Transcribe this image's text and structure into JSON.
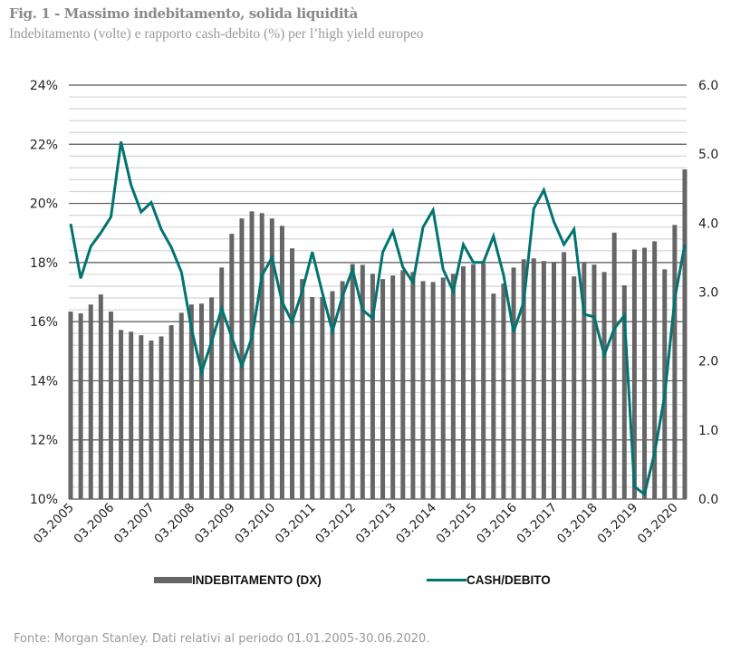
{
  "title": "Fig. 1 - Massimo indebitamento, solida liquidità",
  "subtitle": "Indebitamento (volte) e rapporto cash-debito (%) per l’high yield europeo",
  "footer": "Fonte: Morgan Stanley. Dati relativi al periodo 01.01.2005-30.06.2020.",
  "colors": {
    "bars": "#666666",
    "line": "#007470",
    "grid_major": "#555555",
    "grid_minor": "#d4d4d4"
  },
  "chart_data": {
    "type": "bar+line",
    "title": "Fig. 1 - Massimo indebitamento, solida liquidità",
    "x_tick_labels": [
      "03.2005",
      "03.2006",
      "03.2007",
      "03.2008",
      "03.2009",
      "03.2010",
      "03.2011",
      "03.2012",
      "03.2013",
      "03.2014",
      "03.2015",
      "03.2016",
      "03.2017",
      "03.2018",
      "03.2019",
      "03.2020"
    ],
    "x_tick_every": 4,
    "left_axis": {
      "ylim": [
        10,
        24
      ],
      "ticks": [
        "10%",
        "12%",
        "14%",
        "16%",
        "18%",
        "20%",
        "22%",
        "24%"
      ],
      "tick_values": [
        10,
        12,
        14,
        16,
        18,
        20,
        22,
        24
      ],
      "minor_step": 0.4
    },
    "right_axis": {
      "ylim": [
        0,
        6
      ],
      "ticks": [
        "0.0",
        "1.0",
        "2.0",
        "3.0",
        "4.0",
        "5.0",
        "6.0"
      ],
      "tick_values": [
        0,
        1,
        2,
        3,
        4,
        5,
        6
      ]
    },
    "grid": true,
    "legend_position": "bottom",
    "series": [
      {
        "name": "INDEBITAMENTO (DX)",
        "type": "bar",
        "axis": "left",
        "values": [
          16.34,
          16.28,
          16.58,
          16.92,
          16.34,
          15.72,
          15.66,
          15.54,
          15.36,
          15.5,
          15.88,
          16.3,
          16.58,
          16.61,
          16.82,
          17.83,
          18.97,
          19.49,
          19.73,
          19.67,
          19.49,
          19.24,
          18.48,
          17.44,
          16.83,
          16.83,
          17.03,
          17.37,
          17.95,
          17.92,
          17.62,
          17.44,
          17.56,
          17.74,
          17.68,
          17.37,
          17.34,
          17.49,
          17.62,
          17.87,
          17.94,
          17.96,
          16.95,
          17.29,
          17.83,
          18.11,
          18.14,
          18.05,
          17.98,
          18.35,
          17.53,
          18.02,
          17.93,
          17.68,
          19.01,
          17.23,
          18.44,
          18.5,
          18.72,
          17.77,
          19.27,
          21.15
        ]
      },
      {
        "name": "CASH/DEBITO",
        "type": "line",
        "axis": "right",
        "values": [
          3.99,
          3.2,
          3.66,
          3.86,
          4.09,
          5.18,
          4.55,
          4.16,
          4.3,
          3.91,
          3.65,
          3.29,
          2.47,
          1.84,
          2.28,
          2.76,
          2.35,
          1.93,
          2.34,
          3.24,
          3.5,
          2.86,
          2.57,
          3.01,
          3.58,
          2.99,
          2.43,
          2.94,
          3.33,
          2.74,
          2.62,
          3.58,
          3.88,
          3.36,
          3.14,
          3.94,
          4.19,
          3.33,
          3.01,
          3.69,
          3.43,
          3.43,
          3.81,
          3.25,
          2.42,
          2.86,
          4.21,
          4.48,
          4.02,
          3.69,
          3.91,
          2.68,
          2.64,
          2.09,
          2.47,
          2.66,
          0.18,
          0.07,
          0.67,
          1.5,
          2.9,
          3.69
        ]
      }
    ]
  }
}
